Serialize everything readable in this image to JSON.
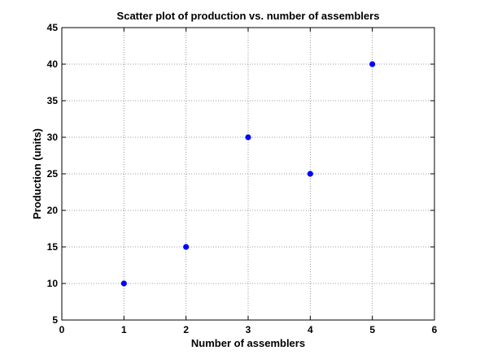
{
  "chart_data": {
    "type": "scatter",
    "title": "Scatter plot of production vs. number of assemblers",
    "xlabel": "Number of assemblers",
    "ylabel": "Production (units)",
    "xlim": [
      0,
      6
    ],
    "ylim": [
      5,
      45
    ],
    "xticks": [
      0,
      1,
      2,
      3,
      4,
      5,
      6
    ],
    "yticks": [
      5,
      10,
      15,
      20,
      25,
      30,
      35,
      40,
      45
    ],
    "grid": true,
    "marker_color": "#0000ff",
    "points": [
      {
        "x": 1,
        "y": 10
      },
      {
        "x": 2,
        "y": 15
      },
      {
        "x": 3,
        "y": 30
      },
      {
        "x": 4,
        "y": 25
      },
      {
        "x": 5,
        "y": 40
      }
    ]
  }
}
